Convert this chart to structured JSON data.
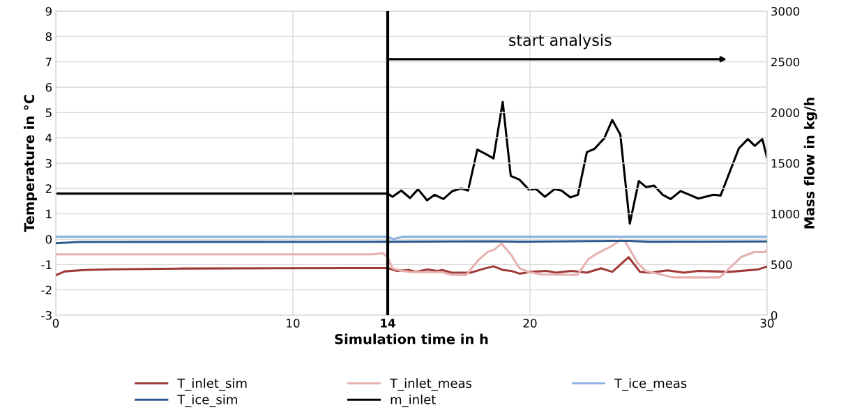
{
  "chart_data": {
    "type": "line",
    "xlabel": "Simulation time in h",
    "ylabel": "Temperature in °C",
    "y2label": "Mass flow in kg/h",
    "xlim": [
      0,
      30
    ],
    "xticks": [
      0,
      10,
      14,
      20,
      30
    ],
    "ylim": [
      -3,
      9
    ],
    "yticks": [
      -3,
      -2,
      -1,
      0,
      1,
      2,
      3,
      4,
      5,
      6,
      7,
      8,
      9
    ],
    "y2lim": [
      0,
      3000
    ],
    "y2ticks": [
      0,
      500,
      1000,
      1500,
      2000,
      2500,
      3000
    ],
    "grid": true,
    "legend": "bottom",
    "marker": "none",
    "line_style": "solid",
    "ref_lines": [
      {
        "axis": "x",
        "value": 14,
        "color": "#000000"
      }
    ],
    "annotations": [
      "start analysis"
    ],
    "series": [
      {
        "name": "T_inlet_sim",
        "color": "#9e3a38",
        "x": [
          0,
          0.39,
          1.2,
          2.35,
          5.3,
          9.2,
          14,
          14.4,
          14.9,
          15.2,
          15.66,
          16.1,
          16.3,
          16.7,
          17.5,
          18.0,
          18.46,
          18.87,
          19.2,
          19.56,
          20.0,
          20.7,
          21.1,
          21.75,
          22.4,
          23.0,
          23.47,
          24.16,
          24.64,
          25.07,
          25.8,
          26.5,
          27.1,
          28.4,
          29.6,
          30
        ],
        "values": [
          -1.42,
          -1.27,
          -1.22,
          -1.19,
          -1.16,
          -1.15,
          -1.14,
          -1.25,
          -1.22,
          -1.29,
          -1.2,
          -1.25,
          -1.22,
          -1.32,
          -1.32,
          -1.18,
          -1.07,
          -1.22,
          -1.25,
          -1.36,
          -1.29,
          -1.25,
          -1.32,
          -1.25,
          -1.32,
          -1.15,
          -1.29,
          -0.71,
          -1.29,
          -1.32,
          -1.23,
          -1.32,
          -1.25,
          -1.29,
          -1.2,
          -1.08
        ]
      },
      {
        "name": "T_inlet_meas",
        "color": "#e6b1b0",
        "x": [
          0,
          13.4,
          13.8,
          14,
          14.2,
          14.6,
          15.0,
          16.3,
          16.7,
          17.3,
          17.8,
          18.2,
          18.5,
          18.8,
          19.2,
          19.56,
          19.95,
          20.5,
          22.0,
          22.45,
          22.8,
          23.47,
          23.8,
          24.0,
          24.55,
          24.87,
          25.3,
          26.04,
          28.0,
          28.4,
          28.9,
          29.45,
          29.9,
          30
        ],
        "values": [
          -0.6,
          -0.6,
          -0.55,
          -0.71,
          -1.15,
          -1.25,
          -1.3,
          -1.3,
          -1.41,
          -1.42,
          -0.85,
          -0.51,
          -0.41,
          -0.17,
          -0.61,
          -1.15,
          -1.3,
          -1.39,
          -1.41,
          -0.8,
          -0.58,
          -0.26,
          -0.04,
          -0.07,
          -0.95,
          -1.25,
          -1.34,
          -1.51,
          -1.51,
          -1.15,
          -0.71,
          -0.51,
          -0.51,
          -0.43
        ]
      },
      {
        "name": "T_ice_meas",
        "color": "#8fb4e3",
        "x": [
          0,
          14,
          14.25,
          14.6,
          30
        ],
        "values": [
          0.1,
          0.1,
          0.0,
          0.1,
          0.1
        ]
      },
      {
        "name": "T_ice_sim",
        "color": "#2e5a8f",
        "x": [
          0,
          1,
          14,
          18.5,
          19.5,
          23.5,
          24.2,
          25,
          30
        ],
        "values": [
          -0.16,
          -0.11,
          -0.1,
          -0.08,
          -0.1,
          -0.07,
          -0.07,
          -0.1,
          -0.09
        ]
      },
      {
        "name": "m_inlet",
        "color": "#000000",
        "axis": "y2",
        "x": [
          0,
          14,
          14.2,
          14.57,
          14.94,
          15.28,
          15.66,
          15.98,
          16.35,
          16.73,
          17.1,
          17.39,
          17.78,
          18.12,
          18.46,
          18.85,
          19.19,
          19.56,
          19.96,
          20.26,
          20.63,
          21.03,
          21.33,
          21.7,
          22.02,
          22.4,
          22.72,
          23.13,
          23.47,
          23.81,
          24.21,
          24.59,
          24.91,
          25.23,
          25.6,
          25.93,
          26.35,
          26.73,
          27.1,
          27.74,
          28.04,
          28.81,
          29.19,
          29.48,
          29.8,
          30
        ],
        "values": [
          1200,
          1200,
          1168,
          1230,
          1156,
          1243,
          1134,
          1188,
          1146,
          1225,
          1250,
          1230,
          1634,
          1592,
          1547,
          2104,
          1374,
          1337,
          1238,
          1245,
          1168,
          1243,
          1230,
          1163,
          1188,
          1609,
          1641,
          1745,
          1926,
          1782,
          904,
          1324,
          1262,
          1280,
          1188,
          1146,
          1225,
          1188,
          1151,
          1188,
          1181,
          1646,
          1738,
          1671,
          1738,
          1550
        ]
      }
    ]
  }
}
